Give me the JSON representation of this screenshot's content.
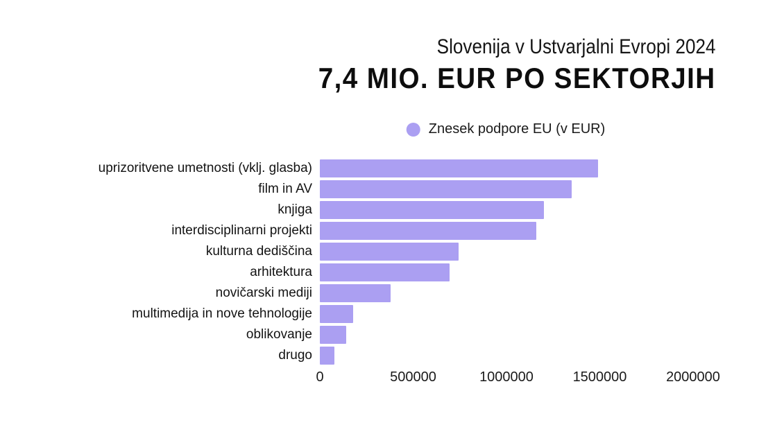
{
  "header": {
    "title_line1": "Slovenija v Ustvarjalni Evropi 2024",
    "title_line2": "7,4 MIO. EUR PO SEKTORJIH"
  },
  "legend": {
    "label": "Znesek podpore EU (v EUR)",
    "color": "#ab9ff2"
  },
  "colors": {
    "bar": "#ab9ff2",
    "background": "#ffffff",
    "text": "#161616"
  },
  "chart_data": {
    "type": "bar",
    "orientation": "horizontal",
    "title": "Slovenija v Ustvarjalni Evropi 2024",
    "subtitle": "7,4 MIO. EUR PO SEKTORJIH",
    "series_name": "Znesek podpore EU (v EUR)",
    "legend_position": "top-center",
    "categories": [
      "uprizoritvene umetnosti (vklj. glasba)",
      "film in AV",
      "knjiga",
      "interdisciplinarni projekti",
      "kulturna dediščina",
      "arhitektura",
      "novičarski mediji",
      "multimedija in nove tehnologije",
      "oblikovanje",
      "drugo"
    ],
    "values": [
      1490000,
      1350000,
      1200000,
      1160000,
      745000,
      695000,
      380000,
      180000,
      140000,
      78000
    ],
    "xlabel": "",
    "ylabel": "",
    "xlim": [
      0,
      2000000
    ],
    "x_ticks": [
      0,
      500000,
      1000000,
      1500000,
      2000000
    ],
    "x_tick_labels": [
      "0",
      "500000",
      "1000000",
      "1500000",
      "2000000"
    ],
    "grid": false
  }
}
